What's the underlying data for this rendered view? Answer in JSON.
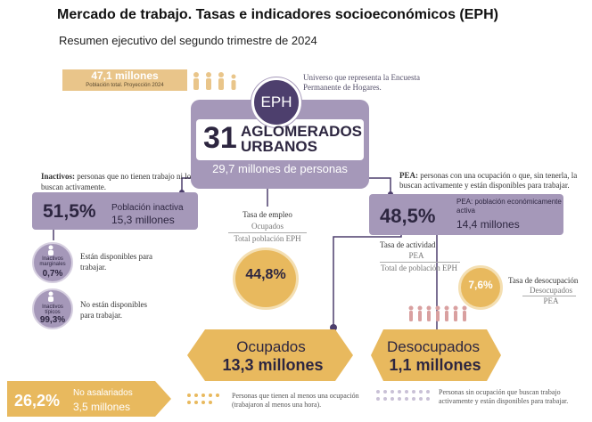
{
  "header": {
    "title": "Mercado de trabajo. Tasas e indicadores socioeconómicos (EPH)",
    "subtitle": "Resumen ejecutivo del segundo trimestre de 2024"
  },
  "population": {
    "value": "47,1 millones",
    "caption": "Población total. Proyección 2024",
    "icon": "people-icon"
  },
  "universe_note": "Universo que representa la Encuesta Permanente de Hogares.",
  "eph": {
    "badge": "EPH",
    "agglomerates_number": "31",
    "agglomerates_label": "AGLOMERADOS URBANOS",
    "people": "29,7 millones de personas"
  },
  "inactivos": {
    "definition_term": "Inactivos:",
    "definition_text": " personas que no tienen trabajo ni lo buscan activamente.",
    "pct": "51,5%",
    "label": "Población inactiva",
    "value": "15,3 millones",
    "marginales": {
      "label": "Inactivos marginales",
      "pct": "0,7%",
      "description": "Están disponibles para trabajar."
    },
    "tipicos": {
      "label": "Inactivos típicos",
      "pct": "99,3%",
      "description": "No están disponibles para trabajar."
    }
  },
  "tasa_empleo": {
    "label": "Tasa de empleo",
    "numerator": "Ocupados",
    "denominator": "Total población EPH",
    "pct": "44,8%"
  },
  "pea": {
    "definition_term": "PEA:",
    "definition_text": " personas con una ocupación o que, sin tenerla, la buscan activamente y están disponibles para trabajar.",
    "pct": "48,5%",
    "label": "PEA: población económicamente activa",
    "value": "14,4 millones"
  },
  "tasa_actividad": {
    "label": "Tasa de actividad",
    "numerator": "PEA",
    "denominator": "Total de población EPH"
  },
  "tasa_desocupacion": {
    "label": "Tasa de desocupación",
    "numerator": "Desocupados",
    "denominator": "PEA",
    "pct": "7,6%"
  },
  "ocupados": {
    "title": "Ocupados",
    "value": "13,3 millones",
    "definition": "Personas que tienen al menos una ocupación (trabajaron al menos una hora)."
  },
  "desocupados": {
    "title": "Desocupados",
    "value": "1,1 millones",
    "definition": "Personas sin ocupación que buscan trabajo activamente y están disponibles para trabajar."
  },
  "no_asalariados": {
    "pct": "26,2%",
    "label": "No asalariados",
    "value": "3,5 millones"
  },
  "colors": {
    "purple": "#a598b9",
    "dark_purple": "#4d3f6d",
    "gold": "#e8b95e",
    "light_gold": "#e9c58a"
  }
}
